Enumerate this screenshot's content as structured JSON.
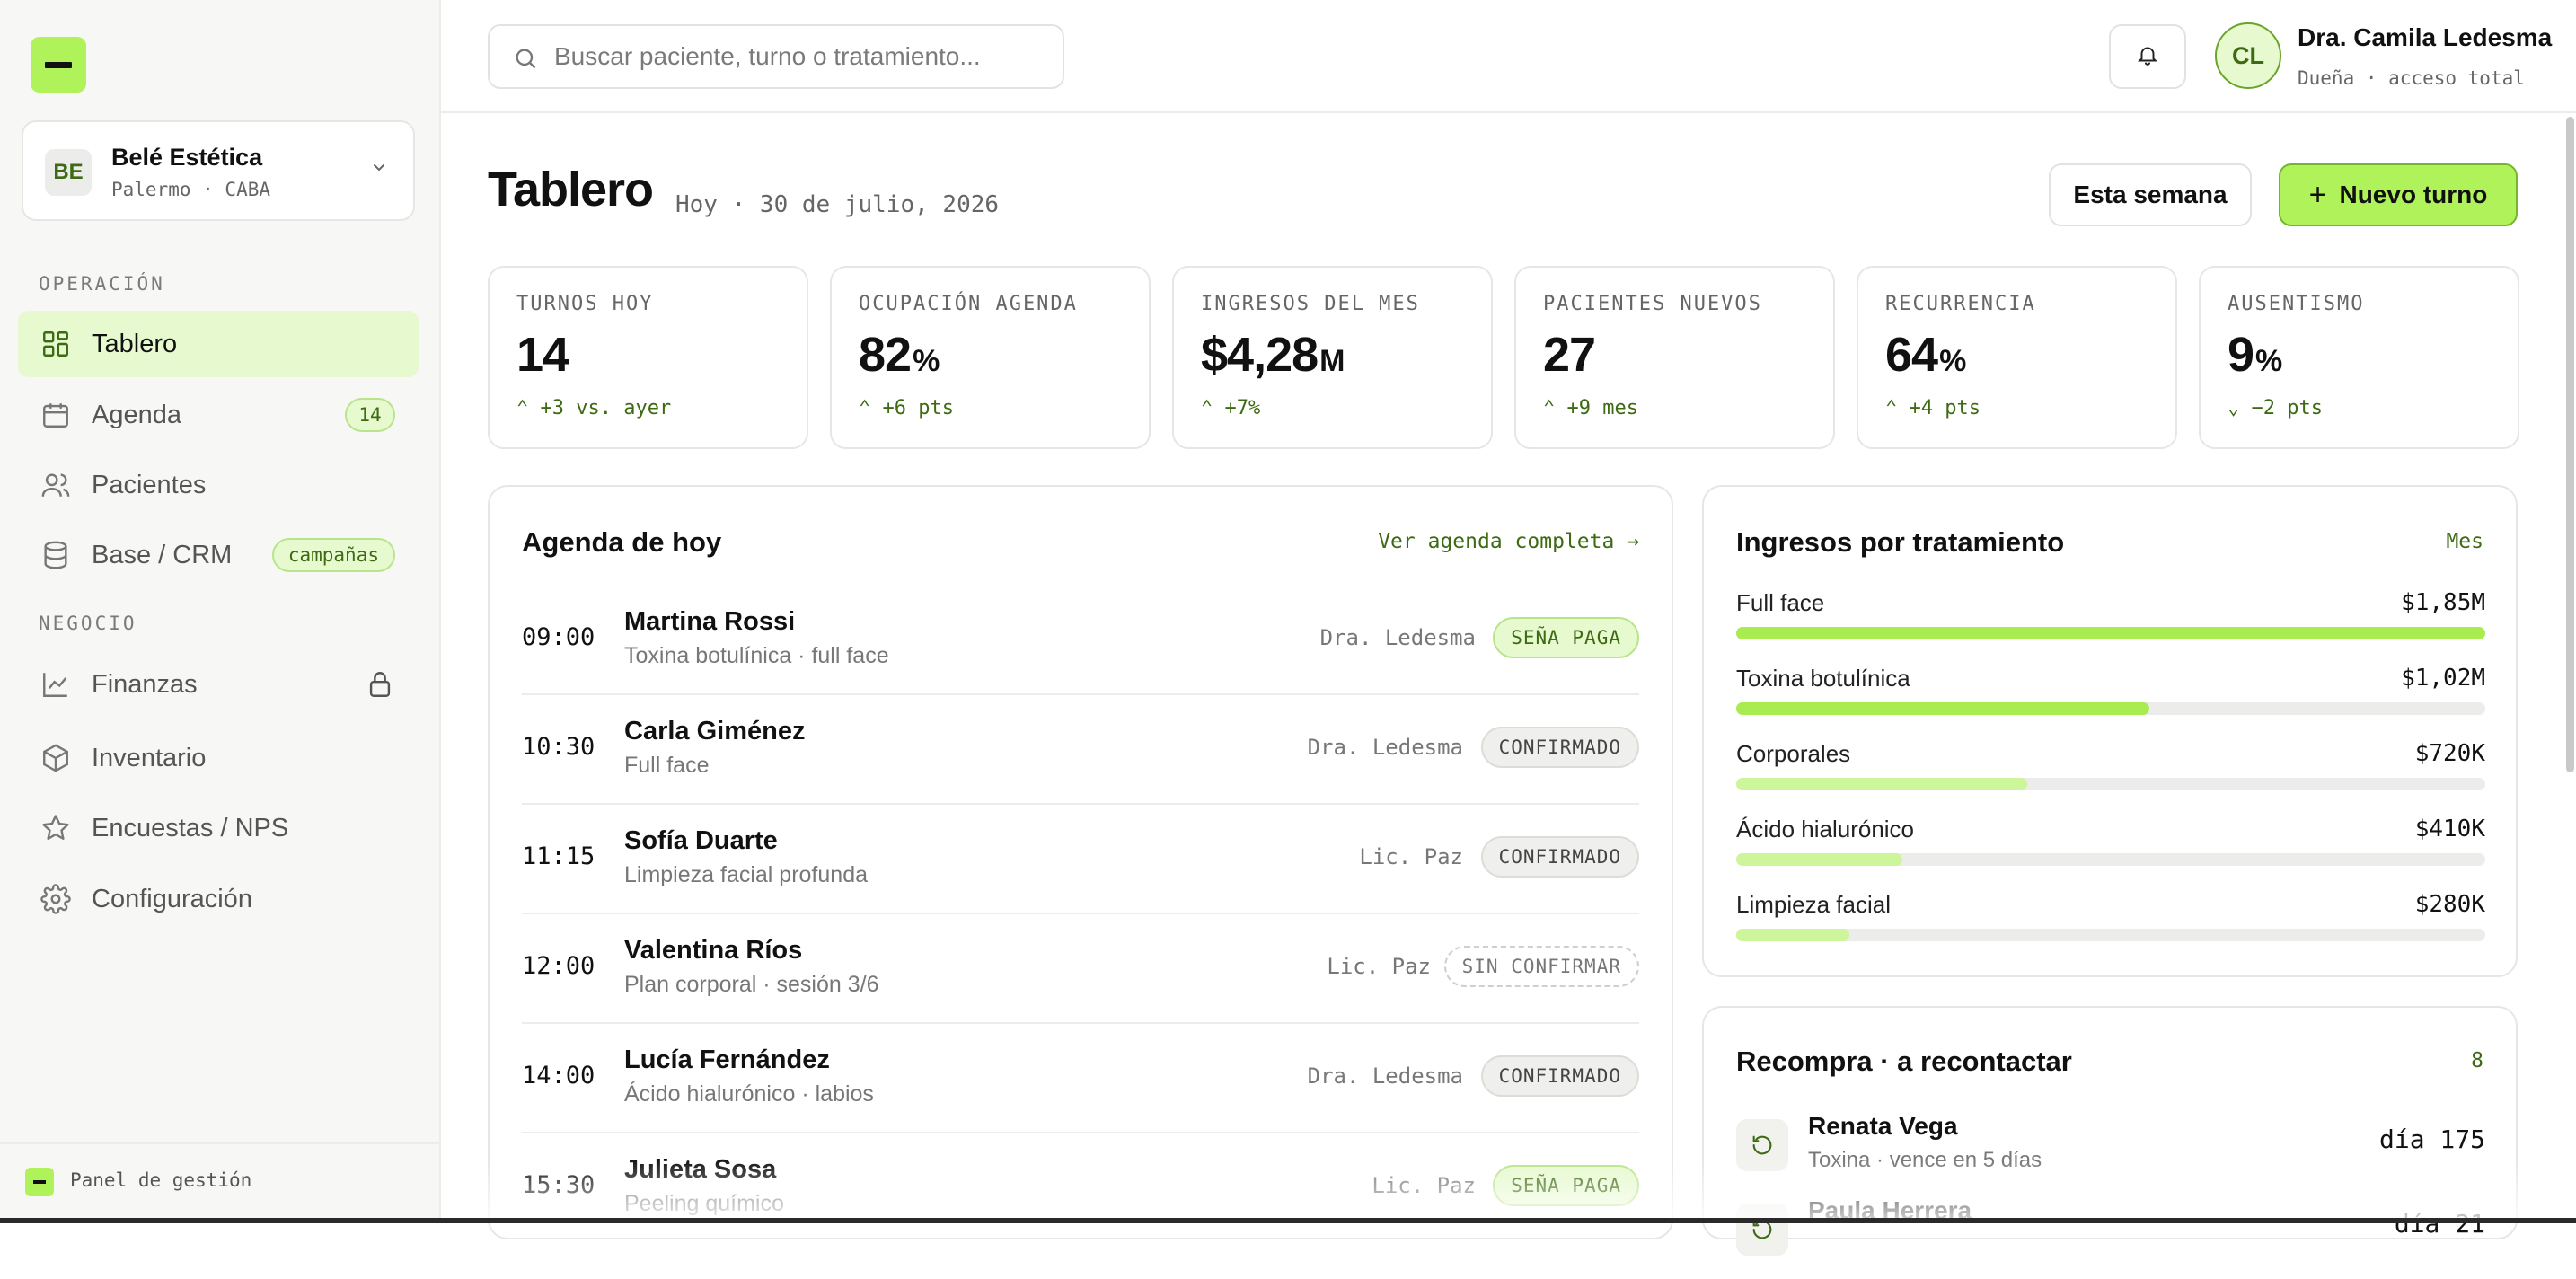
{
  "brand": {
    "accent": "#b0f25a",
    "accent_dark": "#3d6a12",
    "accent_soft": "#e6f9cf"
  },
  "org": {
    "initials": "BE",
    "name": "Belé Estética",
    "location": "Palermo · CABA",
    "chevron_icon": "chevron-down-icon"
  },
  "nav": {
    "section_ops": "OPERACIÓN",
    "section_business": "NEGOCIO",
    "items": [
      {
        "label": "Tablero",
        "icon": "grid-icon",
        "active": true
      },
      {
        "label": "Agenda",
        "icon": "calendar-icon",
        "badge": "14"
      },
      {
        "label": "Pacientes",
        "icon": "users-icon"
      },
      {
        "label": "Base / CRM",
        "icon": "database-icon",
        "badge": "campañas"
      },
      {
        "label": "Finanzas",
        "icon": "chart-line-icon",
        "locked": true
      },
      {
        "label": "Inventario",
        "icon": "box-icon"
      },
      {
        "label": "Encuestas / NPS",
        "icon": "star-icon"
      },
      {
        "label": "Configuración",
        "icon": "gear-icon"
      }
    ]
  },
  "footer": {
    "label": "Panel de gestión"
  },
  "search": {
    "placeholder": "Buscar paciente, turno o tratamiento..."
  },
  "user": {
    "initials": "CL",
    "name": "Dra. Camila Ledesma",
    "role": "Dueña · acceso total"
  },
  "header": {
    "title": "Tablero",
    "date": "Hoy · 30 de julio, 2026",
    "week_button": "Esta semana",
    "new_button": "Nuevo turno"
  },
  "kpis": [
    {
      "label": "TURNOS HOY",
      "value": "14",
      "unit": "",
      "delta": "+3 vs. ayer",
      "trend": "up"
    },
    {
      "label": "OCUPACIÓN AGENDA",
      "value": "82",
      "unit": "%",
      "delta": "+6 pts",
      "trend": "up"
    },
    {
      "label": "INGRESOS DEL MES",
      "value": "$4,28",
      "unit": "M",
      "delta": "+7%",
      "trend": "up"
    },
    {
      "label": "PACIENTES NUEVOS",
      "value": "27",
      "unit": "",
      "delta": "+9 mes",
      "trend": "up"
    },
    {
      "label": "RECURRENCIA",
      "value": "64",
      "unit": "%",
      "delta": "+4 pts",
      "trend": "up"
    },
    {
      "label": "AUSENTISMO",
      "value": "9",
      "unit": "%",
      "delta": "−2 pts",
      "trend": "down"
    }
  ],
  "agenda": {
    "title": "Agenda de hoy",
    "link": "Ver agenda completa →",
    "rows": [
      {
        "time": "09:00",
        "name": "Martina Rossi",
        "treatment": "Toxina botulínica · full face",
        "professional": "Dra. Ledesma",
        "status": "SEÑA PAGA",
        "kind": "paid"
      },
      {
        "time": "10:30",
        "name": "Carla Giménez",
        "treatment": "Full face",
        "professional": "Dra. Ledesma",
        "status": "CONFIRMADO",
        "kind": "conf"
      },
      {
        "time": "11:15",
        "name": "Sofía Duarte",
        "treatment": "Limpieza facial profunda",
        "professional": "Lic. Paz",
        "status": "CONFIRMADO",
        "kind": "conf"
      },
      {
        "time": "12:00",
        "name": "Valentina Ríos",
        "treatment": "Plan corporal · sesión 3/6",
        "professional": "Lic. Paz",
        "status": "SIN CONFIRMAR",
        "kind": "unconf"
      },
      {
        "time": "14:00",
        "name": "Lucía Fernández",
        "treatment": "Ácido hialurónico · labios",
        "professional": "Dra. Ledesma",
        "status": "CONFIRMADO",
        "kind": "conf"
      },
      {
        "time": "15:30",
        "name": "Julieta Sosa",
        "treatment": "Peeling químico",
        "professional": "Lic. Paz",
        "status": "SEÑA PAGA",
        "kind": "paid"
      }
    ]
  },
  "revenue": {
    "title": "Ingresos por tratamiento",
    "period": "Mes",
    "rows": [
      {
        "name": "Full face",
        "amount": "$1,85M",
        "fraction": 1.0,
        "color": "#a8ec50"
      },
      {
        "name": "Toxina botulínica",
        "amount": "$1,02M",
        "fraction": 0.551,
        "color": "#a8ec50"
      },
      {
        "name": "Corporales",
        "amount": "$720K",
        "fraction": 0.389,
        "color": "#cdf59a"
      },
      {
        "name": "Ácido hialurónico",
        "amount": "$410K",
        "fraction": 0.222,
        "color": "#cdf59a"
      },
      {
        "name": "Limpieza facial",
        "amount": "$280K",
        "fraction": 0.151,
        "color": "#cdf59a"
      }
    ]
  },
  "recall": {
    "title": "Recompra · a recontactar",
    "count": "8",
    "rows": [
      {
        "name": "Renata Vega",
        "detail": "Toxina · vence en 5 días",
        "day": "día 175"
      },
      {
        "name": "Paula Herrera",
        "detail": "",
        "day": "día 21"
      }
    ]
  }
}
